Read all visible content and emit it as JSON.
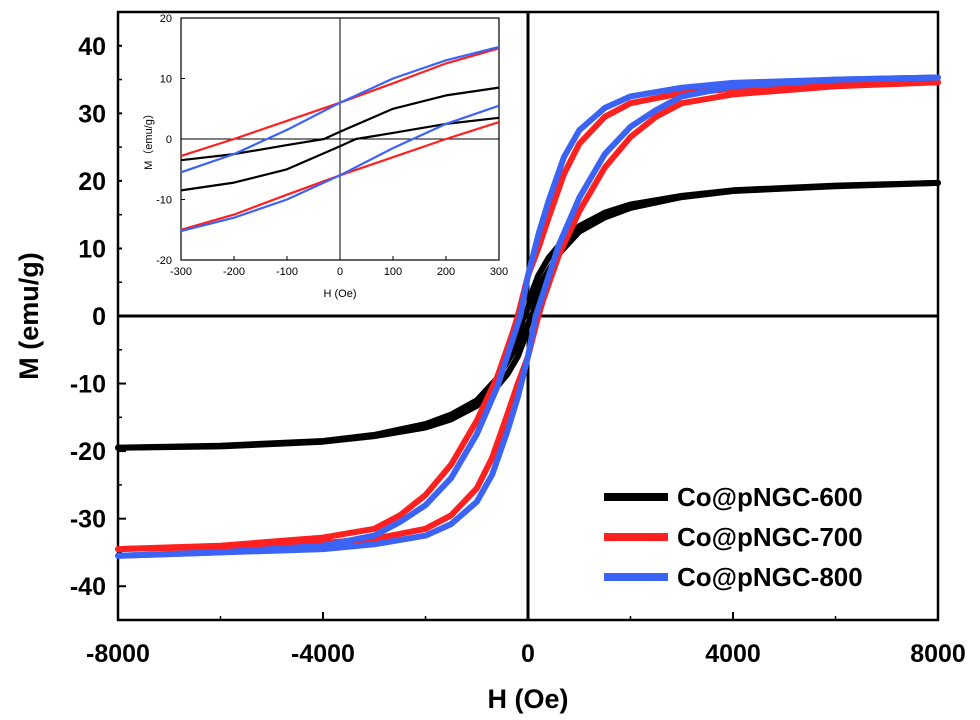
{
  "chart_data": [
    {
      "type": "line",
      "title": "",
      "xlabel": "H (Oe)",
      "ylabel": "M (emu/g)",
      "xlim": [
        -8000,
        8000
      ],
      "ylim": [
        -45,
        45
      ],
      "xticks": [
        -8000,
        -4000,
        0,
        4000,
        8000
      ],
      "xtick_labels": [
        "-8000",
        "-4000",
        "0",
        "4000",
        "8000"
      ],
      "yticks": [
        -40,
        -30,
        -20,
        -10,
        0,
        10,
        20,
        30,
        40
      ],
      "ytick_labels": [
        "-40",
        "-30",
        "-20",
        "-10",
        "0",
        "10",
        "20",
        "30",
        "40"
      ],
      "grid": false,
      "zero_lines": true,
      "legend_position": "bottom-right",
      "series": [
        {
          "name": "Co@pNGC-600",
          "color": "#000000",
          "branch_upper": {
            "x": [
              -8000,
              -6000,
              -4000,
              -3000,
              -2000,
              -1500,
              -1000,
              -600,
              -300,
              -200,
              -100,
              0,
              100,
              200,
              400,
              700,
              1000,
              1500,
              2000,
              3000,
              4000,
              6000,
              8000
            ],
            "y": [
              -19.5,
              -19.2,
              -18.5,
              -17.6,
              -16.0,
              -14.6,
              -12.5,
              -9.2,
              -5.5,
              -4.0,
              -0.5,
              1.2,
              4.0,
              6.0,
              8.6,
              11.3,
              13.3,
              15.3,
              16.5,
              17.8,
              18.6,
              19.3,
              19.7
            ]
          },
          "branch_lower": {
            "x": [
              -8000,
              -6000,
              -4000,
              -3000,
              -2000,
              -1500,
              -1000,
              -700,
              -400,
              -200,
              -100,
              0,
              100,
              200,
              300,
              600,
              1000,
              1500,
              2000,
              3000,
              4000,
              6000,
              8000
            ],
            "y": [
              -19.5,
              -19.3,
              -18.6,
              -17.8,
              -16.5,
              -15.3,
              -13.3,
              -11.3,
              -8.6,
              -6.0,
              -4.0,
              -1.2,
              0.5,
              4.0,
              5.5,
              9.2,
              12.5,
              14.6,
              16.0,
              17.6,
              18.5,
              19.2,
              19.7
            ]
          }
        },
        {
          "name": "Co@pNGC-700",
          "color": "#ff2020",
          "branch_upper": {
            "x": [
              -8000,
              -6000,
              -4000,
              -3000,
              -2500,
              -2000,
              -1500,
              -1000,
              -600,
              -300,
              -200,
              0,
              200,
              400,
              700,
              1000,
              1500,
              2000,
              3000,
              4000,
              6000,
              8000
            ],
            "y": [
              -34.5,
              -34.0,
              -32.8,
              -31.5,
              -29.5,
              -26.5,
              -22.0,
              -15.5,
              -9.0,
              -2.5,
              0.0,
              6.0,
              10.0,
              14.5,
              21.0,
              25.5,
              29.5,
              31.5,
              33.0,
              33.6,
              34.2,
              34.6
            ]
          },
          "branch_lower": {
            "x": [
              -8000,
              -6000,
              -4000,
              -3000,
              -2000,
              -1500,
              -1000,
              -700,
              -400,
              -200,
              0,
              200,
              300,
              600,
              1000,
              1500,
              2000,
              2500,
              3000,
              4000,
              6000,
              8000
            ],
            "y": [
              -34.5,
              -34.2,
              -33.6,
              -33.0,
              -31.5,
              -29.5,
              -25.5,
              -21.0,
              -14.5,
              -10.0,
              -6.0,
              0.0,
              2.5,
              9.0,
              15.5,
              22.0,
              26.5,
              29.5,
              31.5,
              32.8,
              34.0,
              34.6
            ]
          }
        },
        {
          "name": "Co@pNGC-800",
          "color": "#3b63f5",
          "branch_upper": {
            "x": [
              -8000,
              -6000,
              -4000,
              -3000,
              -2500,
              -2000,
              -1500,
              -1000,
              -600,
              -300,
              -150,
              0,
              200,
              400,
              700,
              1000,
              1500,
              2000,
              3000,
              4000,
              6000,
              8000
            ],
            "y": [
              -35.5,
              -35.0,
              -34.0,
              -32.5,
              -30.5,
              -28.0,
              -24.0,
              -17.5,
              -10.5,
              -3.5,
              0.0,
              6.0,
              12.0,
              17.0,
              23.5,
              27.5,
              30.8,
              32.5,
              33.8,
              34.5,
              35.0,
              35.3
            ]
          },
          "branch_lower": {
            "x": [
              -8000,
              -6000,
              -4000,
              -3000,
              -2000,
              -1500,
              -1000,
              -700,
              -400,
              -200,
              0,
              150,
              300,
              600,
              1000,
              1500,
              2000,
              2500,
              3000,
              4000,
              6000,
              8000
            ],
            "y": [
              -35.5,
              -35.0,
              -34.5,
              -33.8,
              -32.5,
              -30.8,
              -27.5,
              -23.5,
              -17.0,
              -12.0,
              -6.0,
              0.0,
              3.5,
              10.5,
              17.5,
              24.0,
              28.0,
              30.5,
              32.5,
              34.0,
              35.0,
              35.3
            ]
          }
        }
      ]
    },
    {
      "type": "line",
      "title": "",
      "xlabel": "H (Oe)",
      "ylabel": "M（emu/g）",
      "xlim": [
        -300,
        300
      ],
      "ylim": [
        -20,
        20
      ],
      "xticks": [
        -300,
        -200,
        -100,
        0,
        100,
        200,
        300
      ],
      "xtick_labels": [
        "-300",
        "-200",
        "-100",
        "0",
        "100",
        "200",
        "300"
      ],
      "yticks": [
        -20,
        -10,
        0,
        10,
        20
      ],
      "ytick_labels": [
        "-20",
        "-10",
        "0",
        "10",
        "20"
      ],
      "grid": false,
      "zero_lines": true,
      "position": "inset top-left",
      "series": [
        {
          "name": "Co@pNGC-600",
          "color": "#000000",
          "branch_upper": {
            "x": [
              -300,
              -200,
              -100,
              -30,
              0,
              100,
              200,
              300
            ],
            "y": [
              -3.5,
              -2.5,
              -1.0,
              0.0,
              1.2,
              5.0,
              7.2,
              8.5
            ]
          },
          "branch_lower": {
            "x": [
              -300,
              -200,
              -100,
              0,
              30,
              100,
              200,
              300
            ],
            "y": [
              -8.5,
              -7.2,
              -5.0,
              -1.2,
              0.0,
              1.0,
              2.5,
              3.5
            ]
          }
        },
        {
          "name": "Co@pNGC-700",
          "color": "#ff2020",
          "branch_upper": {
            "x": [
              -300,
              -200,
              -100,
              0,
              100,
              200,
              300
            ],
            "y": [
              -2.8,
              0.0,
              3.0,
              6.0,
              9.2,
              12.5,
              15.0
            ]
          },
          "branch_lower": {
            "x": [
              -300,
              -200,
              -100,
              0,
              100,
              200,
              300
            ],
            "y": [
              -15.0,
              -12.5,
              -9.2,
              -6.0,
              -3.0,
              0.0,
              2.8
            ]
          }
        },
        {
          "name": "Co@pNGC-800",
          "color": "#3b63f5",
          "branch_upper": {
            "x": [
              -300,
              -200,
              -100,
              0,
              100,
              200,
              300
            ],
            "y": [
              -5.5,
              -2.5,
              1.5,
              6.0,
              10.0,
              13.0,
              15.2
            ]
          },
          "branch_lower": {
            "x": [
              -300,
              -200,
              -100,
              0,
              100,
              200,
              300
            ],
            "y": [
              -15.2,
              -13.0,
              -10.0,
              -6.0,
              -1.5,
              2.5,
              5.5
            ]
          }
        }
      ]
    }
  ]
}
